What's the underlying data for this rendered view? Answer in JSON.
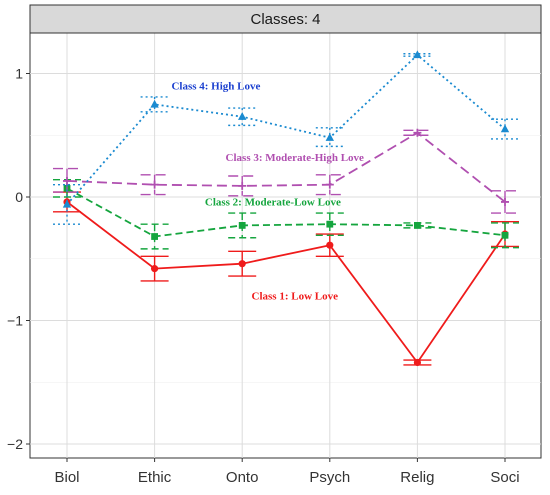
{
  "chart_data": {
    "type": "line",
    "title": "",
    "facet_label": "Classes: 4",
    "xlabel": "",
    "ylabel": "",
    "categories": [
      "Biol",
      "Ethic",
      "Onto",
      "Psych",
      "Relig",
      "Soci"
    ],
    "ylim": [
      -2.2,
      1.35
    ],
    "yticks": [
      -2,
      -1,
      0,
      1
    ],
    "ytick_labels": [
      "−2",
      "−1",
      "0",
      "1"
    ],
    "grid": true,
    "legend": "none",
    "series": [
      {
        "key": "class1",
        "values": [
          -0.04,
          -0.58,
          -0.54,
          -0.39,
          -1.34,
          -0.3
        ],
        "err_low": [
          -0.12,
          -0.68,
          -0.64,
          -0.48,
          -1.36,
          -0.4
        ],
        "err_high": [
          0.04,
          -0.48,
          -0.44,
          -0.3,
          -1.32,
          -0.2
        ],
        "color": "#ef1b1b",
        "dash": "solid",
        "marker": "circle",
        "annotation": "Class 1: Low Love"
      },
      {
        "key": "class2",
        "values": [
          0.07,
          -0.32,
          -0.23,
          -0.22,
          -0.23,
          -0.31
        ],
        "err_low": [
          0.0,
          -0.42,
          -0.33,
          -0.31,
          -0.25,
          -0.41
        ],
        "err_high": [
          0.14,
          -0.22,
          -0.13,
          -0.13,
          -0.21,
          -0.21
        ],
        "color": "#15a53e",
        "dash": "long",
        "marker": "square",
        "annotation": "Class 2: Moderate-Low Love"
      },
      {
        "key": "class3",
        "values": [
          0.13,
          0.1,
          0.09,
          0.1,
          0.52,
          -0.04
        ],
        "err_low": [
          0.04,
          0.02,
          0.01,
          0.02,
          0.5,
          -0.13
        ],
        "err_high": [
          0.23,
          0.18,
          0.17,
          0.18,
          0.54,
          0.05
        ],
        "color": "#b04fb0",
        "dash": "longdash",
        "marker": "plus",
        "annotation": "Class 3: Moderate-High Love"
      },
      {
        "key": "class4",
        "values": [
          -0.06,
          0.75,
          0.65,
          0.48,
          1.15,
          0.55
        ],
        "err_low": [
          -0.22,
          0.69,
          0.58,
          0.41,
          1.14,
          0.47
        ],
        "err_high": [
          0.1,
          0.81,
          0.72,
          0.56,
          1.16,
          0.63
        ],
        "color": "#1a8ad0",
        "dash": "dotted",
        "marker": "triangle",
        "annotation": "Class 4:  High Love",
        "annotation_color": "#1a3fcf"
      }
    ],
    "annotation_positions": {
      "class1": {
        "cat": 2.6,
        "y": -0.83
      },
      "class2": {
        "cat": 2.35,
        "y": -0.07
      },
      "class3": {
        "cat": 2.6,
        "y": 0.29
      },
      "class4": {
        "cat": 1.7,
        "y": 0.87
      }
    }
  }
}
